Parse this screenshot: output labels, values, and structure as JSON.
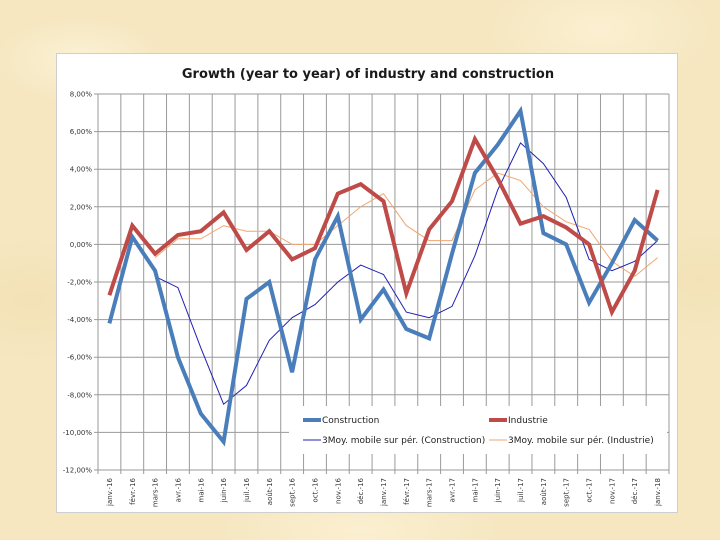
{
  "chart_data": {
    "type": "line",
    "title": "Growth (year to year) of industry and construction",
    "xlabel": "",
    "ylabel": "",
    "ylim": [
      -12,
      8
    ],
    "yticks": [
      8,
      6,
      4,
      2,
      0,
      -2,
      -4,
      -6,
      -8,
      -10,
      -12
    ],
    "ytick_labels": [
      "8,00%",
      "6,00%",
      "4,00%",
      "2,00%",
      "0,00%",
      "-2,00%",
      "-4,00%",
      "-6,00%",
      "-8,00%",
      "-10,00%",
      "-12,00%"
    ],
    "grid": true,
    "legend_position": "bottom-right-inside",
    "categories": [
      "janv.-16",
      "févr.-16",
      "mars-16",
      "avr.-16",
      "mai-16",
      "juin-16",
      "juil.-16",
      "août-16",
      "sept.-16",
      "oct.-16",
      "nov.-16",
      "déc.-16",
      "janv.-17",
      "févr.-17",
      "mars-17",
      "avr.-17",
      "mai-17",
      "juin-17",
      "juil.-17",
      "août-17",
      "sept.-17",
      "oct.-17",
      "nov.-17",
      "déc.-17",
      "janv.-18"
    ],
    "series": [
      {
        "name": "Construction",
        "color": "#4a7eba",
        "style": "thick",
        "values": [
          -4.2,
          0.4,
          -1.4,
          -6.0,
          -9.0,
          -10.5,
          -2.9,
          -2.0,
          -6.8,
          -0.8,
          1.5,
          -4.0,
          -2.4,
          -4.5,
          -5.0,
          -0.5,
          3.8,
          5.3,
          7.1,
          0.6,
          0.0,
          -3.1,
          -1.0,
          1.3,
          0.2
        ]
      },
      {
        "name": "Industrie",
        "color": "#be4b48",
        "style": "thick",
        "values": [
          -2.7,
          1.0,
          -0.5,
          0.5,
          0.7,
          1.7,
          -0.3,
          0.7,
          -0.8,
          -0.2,
          2.7,
          3.2,
          2.3,
          -2.6,
          0.8,
          2.3,
          5.6,
          3.5,
          1.1,
          1.5,
          0.9,
          0.0,
          -3.6,
          -1.4,
          2.9
        ]
      },
      {
        "name": "3Moy. mobile sur pér. (Construction)",
        "color": "#1f1fb4",
        "style": "thin",
        "values": [
          null,
          null,
          -1.7,
          -2.3,
          -5.5,
          -8.5,
          -7.5,
          -5.1,
          -3.9,
          -3.2,
          -2.0,
          -1.1,
          -1.6,
          -3.6,
          -3.9,
          -3.3,
          -0.6,
          2.9,
          5.4,
          4.3,
          2.5,
          -0.8,
          -1.4,
          -0.9,
          0.2
        ]
      },
      {
        "name": "3Moy. mobile sur pér. (Industrie)",
        "color": "#f2a56e",
        "style": "thin",
        "values": [
          null,
          null,
          -0.7,
          0.3,
          0.3,
          1.0,
          0.7,
          0.7,
          0.0,
          0.0,
          1.0,
          2.0,
          2.7,
          1.0,
          0.2,
          0.2,
          2.9,
          3.8,
          3.4,
          2.0,
          1.2,
          0.8,
          -0.9,
          -1.7,
          -0.7
        ]
      }
    ]
  }
}
